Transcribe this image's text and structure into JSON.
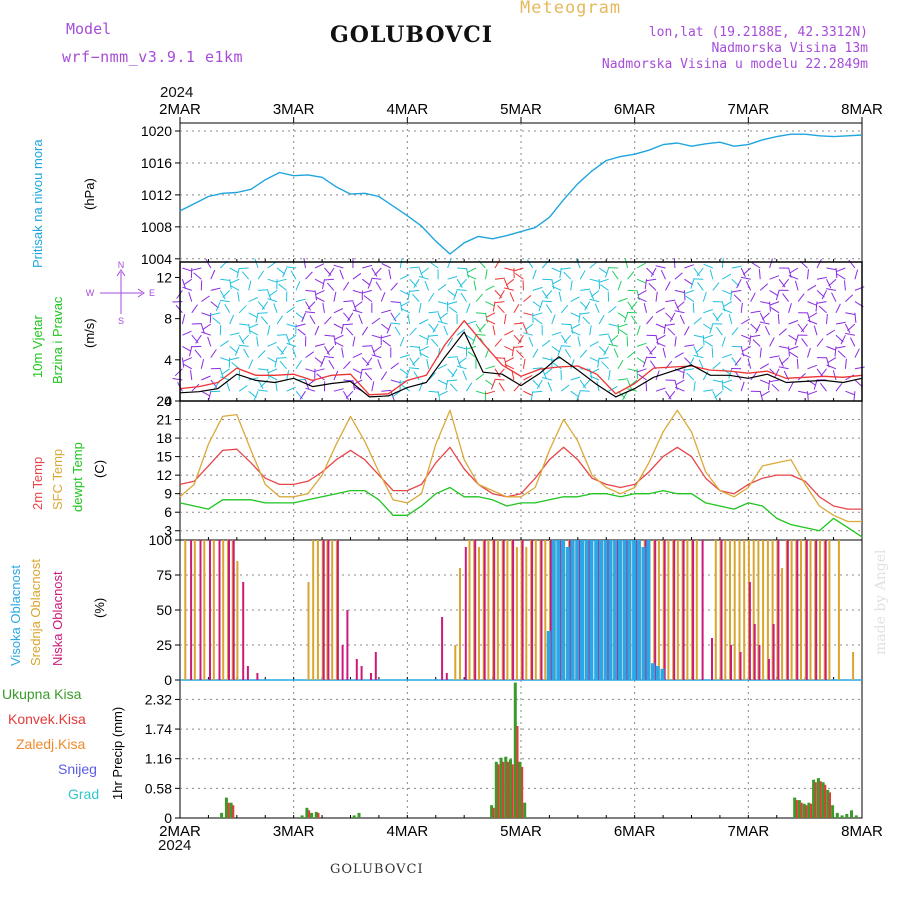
{
  "header": {
    "model_label": "Model",
    "model_name": "wrf−nmm_v3.9.1  e1km",
    "station": "GOLUBOVCI",
    "product": "Meteogram",
    "lonlat": "lon,lat (19.2188E, 42.3312N)",
    "elevation": "Nadmorska Visina 13m",
    "model_elevation": "Nadmorska Visina u modelu 22.2849m",
    "year": "2024",
    "footer_station": "GOLUBOVCI",
    "watermark": "made by Angel"
  },
  "colors": {
    "pressure": "#1fa5de",
    "wind_speed": "#000000",
    "wind_gust": "#ee3333",
    "temp2m": "#e8454a",
    "sfc_temp": "#dba93a",
    "dewpoint": "#1fc41f",
    "cloud_high": "#2aa7e6",
    "cloud_mid": "#d9a52e",
    "cloud_low": "#cc1a7a",
    "precip_total": "#3a9a2a",
    "precip_conv": "#e63a3a",
    "precip_frozen": "#f08a2a",
    "snow": "#5a5ae8",
    "graupel": "#33c7c7",
    "barb_purple": "#8a2be2",
    "barb_cyan": "#20c0e0",
    "barb_green": "#20d060"
  },
  "chart_data": [
    {
      "type": "line",
      "id": "pressure",
      "ylabel_lines": [
        "Pritisak na nivou mora",
        "(hPa)"
      ],
      "yticks": [
        1004,
        1008,
        1012,
        1016,
        1020
      ],
      "ylim": [
        1003.6,
        1021
      ],
      "x": [
        0,
        3,
        6,
        9,
        12,
        15,
        18,
        21,
        24,
        27,
        30,
        33,
        36,
        39,
        42,
        45,
        48,
        51,
        54,
        57,
        60,
        63,
        66,
        69,
        72,
        75,
        78,
        81,
        84,
        87,
        90,
        93,
        96,
        99,
        102,
        105,
        108,
        111,
        114,
        117,
        120,
        123,
        126,
        129,
        132,
        135,
        138,
        141,
        144
      ],
      "series": [
        {
          "values": [
            1010,
            1010.9,
            1011.8,
            1012.2,
            1012.3,
            1012.7,
            1013.9,
            1014.8,
            1014.4,
            1014.5,
            1014.2,
            1013,
            1012.1,
            1012.2,
            1011.8,
            1010.6,
            1009.4,
            1008.1,
            1006.2,
            1004.6,
            1006,
            1006.8,
            1006.5,
            1006.9,
            1007.4,
            1007.9,
            1009.2,
            1011.4,
            1013.4,
            1015,
            1016.3,
            1016.8,
            1017.1,
            1017.6,
            1018.3,
            1018.5,
            1018.1,
            1018.4,
            1018.6,
            1018.1,
            1018.3,
            1018.9,
            1019.3,
            1019.6,
            1019.6,
            1019.4,
            1019.3,
            1019.4,
            1019.5
          ]
        }
      ]
    },
    {
      "type": "line",
      "id": "wind",
      "ylabel_lines": [
        "10m Vjetar",
        "Brzina i Pravac",
        "(m/s)"
      ],
      "yticks": [
        0,
        4,
        8,
        12
      ],
      "ylim": [
        0,
        13.5
      ],
      "compass": {
        "n": "N",
        "s": "S",
        "e": "E",
        "w": "W"
      },
      "x": [
        0,
        4,
        8,
        12,
        16,
        20,
        24,
        28,
        32,
        36,
        40,
        44,
        48,
        52,
        56,
        60,
        64,
        68,
        72,
        76,
        80,
        84,
        88,
        92,
        96,
        100,
        104,
        108,
        112,
        116,
        120,
        124,
        128,
        132,
        136,
        140,
        144
      ],
      "series": [
        {
          "name": "speed",
          "values": [
            0.8,
            0.9,
            1.2,
            2.6,
            2,
            1.8,
            2.2,
            1.4,
            1.7,
            1.9,
            0.4,
            0.5,
            1.3,
            1.8,
            4.3,
            6.7,
            2.8,
            2.6,
            1.5,
            2.7,
            4.3,
            3,
            1.6,
            0.4,
            1.2,
            2.3,
            2.9,
            3.5,
            2.5,
            2.5,
            2.2,
            2.6,
            1.8,
            1.9,
            2,
            1.8,
            2.2
          ]
        },
        {
          "name": "gust",
          "values": [
            1.2,
            1.4,
            1.8,
            3.2,
            2.5,
            2.5,
            2.6,
            2,
            2.5,
            2.6,
            0.6,
            0.7,
            2,
            2.5,
            5.5,
            7.8,
            5.6,
            3.5,
            2.4,
            3.1,
            3.3,
            3.4,
            2.6,
            0.7,
            1.7,
            3.2,
            3.3,
            3.4,
            3,
            2.9,
            2.7,
            2.9,
            2.2,
            2.3,
            2.4,
            2.3,
            2.5
          ]
        }
      ]
    },
    {
      "type": "line",
      "id": "temperature",
      "ylabel_lines": [
        "2m Temp",
        "SFC Temp",
        "dewpt Temp",
        "(C)"
      ],
      "yticks": [
        3,
        6,
        9,
        12,
        15,
        18,
        21,
        24
      ],
      "ylim": [
        1.5,
        24
      ],
      "x": [
        0,
        3,
        6,
        9,
        12,
        15,
        18,
        21,
        24,
        27,
        30,
        33,
        36,
        39,
        42,
        45,
        48,
        51,
        54,
        57,
        60,
        63,
        66,
        69,
        72,
        75,
        78,
        81,
        84,
        87,
        90,
        93,
        96,
        99,
        102,
        105,
        108,
        111,
        114,
        117,
        120,
        123,
        126,
        129,
        132,
        135,
        138,
        141,
        144
      ],
      "series": [
        {
          "name": "2m Temp",
          "values": [
            10.5,
            11,
            13.5,
            16,
            16.2,
            14,
            11.5,
            10.5,
            10.5,
            11,
            12.5,
            14.5,
            16,
            14.5,
            12,
            9.5,
            9.5,
            10.5,
            14,
            16.5,
            13,
            10.5,
            9,
            8.5,
            9,
            11.5,
            14.5,
            16.5,
            14.5,
            11.5,
            10.5,
            10,
            10.5,
            12.5,
            15,
            16.5,
            15,
            11.5,
            9.5,
            9,
            10.5,
            11.5,
            12,
            12,
            11,
            8.5,
            7,
            6.5,
            6.5
          ]
        },
        {
          "name": "SFC Temp",
          "values": [
            8.5,
            10.5,
            17,
            21.5,
            21.8,
            16,
            10.5,
            8.5,
            8.5,
            9,
            12,
            17,
            21.5,
            17.5,
            12.5,
            8,
            7.5,
            9,
            17,
            22.5,
            14.5,
            10.5,
            9.5,
            8.5,
            8.5,
            10,
            16,
            21,
            17.5,
            12,
            10,
            9,
            10,
            14,
            19,
            22.5,
            19,
            12.5,
            9.5,
            8.5,
            10,
            13.5,
            14,
            14.5,
            10.5,
            7,
            5.5,
            4.5,
            4.5
          ]
        },
        {
          "name": "dewpt Temp",
          "values": [
            7.5,
            7,
            6.5,
            8,
            8,
            8,
            7.5,
            7.5,
            7.5,
            8,
            8.5,
            9,
            9.5,
            9.5,
            8,
            5.5,
            5.5,
            7,
            9,
            10,
            8.5,
            8.5,
            8,
            7,
            7.5,
            7.5,
            8,
            8.5,
            8.5,
            9,
            9,
            8.5,
            9,
            9,
            9.5,
            9,
            9,
            7.5,
            7,
            6.5,
            7.5,
            7,
            5,
            4,
            3.5,
            3,
            5,
            3.5,
            2
          ]
        }
      ]
    },
    {
      "type": "bar",
      "id": "clouds",
      "ylabel_lines": [
        "Visoka Oblacnost",
        "Srednja Oblacnost",
        "Niska Oblacnost",
        "(%)"
      ],
      "yticks": [
        0,
        25,
        50,
        75,
        100
      ],
      "ylim": [
        0,
        100
      ],
      "series": [
        {
          "name": "Srednja Oblacnost",
          "x": [
            1,
            3,
            5,
            7,
            9,
            10,
            11,
            12,
            27,
            28,
            29,
            30,
            31,
            32,
            33,
            58,
            59,
            61,
            62,
            63,
            64,
            65,
            66,
            67,
            68,
            69,
            70,
            71,
            72,
            73,
            74,
            75,
            76,
            77,
            78,
            79,
            80,
            81,
            82,
            83,
            84,
            85,
            88,
            89,
            90,
            91,
            92,
            93,
            94,
            95,
            96,
            97,
            98,
            99,
            100,
            101,
            102,
            103,
            104,
            105,
            106,
            107,
            108,
            109,
            113,
            114,
            115,
            116,
            117,
            118,
            119,
            120,
            121,
            122,
            123,
            124,
            125,
            126,
            127,
            128,
            129,
            130,
            131,
            132,
            133,
            134,
            135,
            136,
            137,
            139,
            142
          ],
          "values": [
            100,
            100,
            100,
            100,
            100,
            100,
            100,
            85,
            70,
            100,
            100,
            100,
            100,
            100,
            100,
            25,
            80,
            100,
            100,
            95,
            100,
            100,
            100,
            100,
            100,
            100,
            100,
            95,
            100,
            95,
            100,
            100,
            100,
            100,
            100,
            100,
            100,
            100,
            100,
            100,
            100,
            100,
            100,
            100,
            100,
            100,
            100,
            100,
            100,
            100,
            100,
            100,
            100,
            100,
            100,
            100,
            100,
            100,
            100,
            100,
            100,
            100,
            100,
            100,
            100,
            100,
            100,
            100,
            100,
            100,
            100,
            100,
            100,
            100,
            100,
            100,
            100,
            100,
            80,
            100,
            100,
            100,
            100,
            100,
            100,
            100,
            100,
            100,
            100,
            100,
            20
          ]
        },
        {
          "name": "Niska Oblacnost",
          "x": [
            2,
            4,
            6,
            8,
            10,
            11,
            13,
            14,
            16,
            30,
            31,
            33,
            34,
            35,
            37,
            38,
            40,
            41,
            55,
            56,
            60,
            62,
            64,
            66,
            68,
            70,
            72,
            74,
            76,
            78,
            80,
            82,
            84,
            86,
            88,
            90,
            92,
            94,
            96,
            98,
            100,
            102,
            104,
            106,
            108,
            110,
            112,
            114,
            116,
            118,
            120,
            121,
            122,
            124,
            125,
            126,
            128,
            130,
            132,
            134,
            136
          ],
          "values": [
            100,
            100,
            100,
            100,
            100,
            100,
            70,
            10,
            5,
            100,
            100,
            100,
            25,
            50,
            15,
            10,
            5,
            20,
            45,
            5,
            95,
            100,
            100,
            100,
            100,
            100,
            100,
            100,
            100,
            100,
            100,
            100,
            100,
            100,
            100,
            100,
            100,
            100,
            100,
            100,
            100,
            100,
            100,
            100,
            100,
            100,
            30,
            100,
            25,
            20,
            70,
            40,
            25,
            15,
            40,
            100,
            100,
            100,
            100,
            100,
            100
          ]
        },
        {
          "name": "Visoka Oblacnost",
          "x": [
            78,
            79,
            80,
            81,
            82,
            83,
            84,
            85,
            86,
            87,
            88,
            89,
            90,
            91,
            92,
            93,
            94,
            95,
            96,
            97,
            98,
            99,
            100,
            101,
            102
          ],
          "values": [
            35,
            100,
            100,
            100,
            95,
            100,
            100,
            100,
            100,
            100,
            100,
            100,
            100,
            100,
            100,
            100,
            100,
            100,
            100,
            100,
            95,
            100,
            12,
            10,
            8
          ]
        }
      ]
    },
    {
      "type": "bar",
      "id": "precip",
      "ylabel_lines": [
        "1hr Precip (mm)"
      ],
      "legend": [
        "Ukupna Kisa",
        "Konvek.Kisa",
        "Zaledj.Kisa",
        "Snijeg",
        "Grad"
      ],
      "yticks": [
        0,
        0.58,
        1.16,
        1.74,
        2.32
      ],
      "ylim": [
        0,
        2.7
      ],
      "series": [
        {
          "name": "Ukupna Kisa",
          "x": [
            9,
            10,
            11,
            26,
            27,
            28,
            29,
            37,
            38,
            66,
            67,
            68,
            69,
            70,
            71,
            72,
            73,
            130,
            131,
            132,
            133,
            134,
            135,
            136,
            137,
            138,
            139,
            140,
            141,
            142,
            143
          ],
          "values": [
            0.1,
            0.4,
            0.3,
            0.05,
            0.2,
            0.1,
            0.12,
            0.05,
            0.1,
            0.25,
            1.1,
            1.18,
            1.2,
            1.15,
            2.65,
            1.1,
            0.3,
            0.4,
            0.35,
            0.28,
            0.3,
            0.75,
            0.78,
            0.7,
            0.55,
            0.25,
            0.1,
            0.05,
            0.08,
            0.15,
            0.05
          ]
        },
        {
          "name": "Konvek.Kisa",
          "x": [
            10,
            11,
            27,
            29,
            66,
            67,
            68,
            69,
            70,
            71,
            72,
            130,
            131,
            132,
            133,
            134,
            135,
            136,
            137
          ],
          "values": [
            0.3,
            0.25,
            0.15,
            0.1,
            0.2,
            1.05,
            1.1,
            1.1,
            1.05,
            1.8,
            1.0,
            0.35,
            0.3,
            0.25,
            0.28,
            0.7,
            0.72,
            0.65,
            0.5
          ]
        }
      ]
    }
  ],
  "time_axis": {
    "labels": [
      "2MAR",
      "3MAR",
      "4MAR",
      "5MAR",
      "6MAR",
      "7MAR",
      "8MAR"
    ],
    "hours": [
      0,
      24,
      48,
      72,
      96,
      120,
      144
    ]
  }
}
